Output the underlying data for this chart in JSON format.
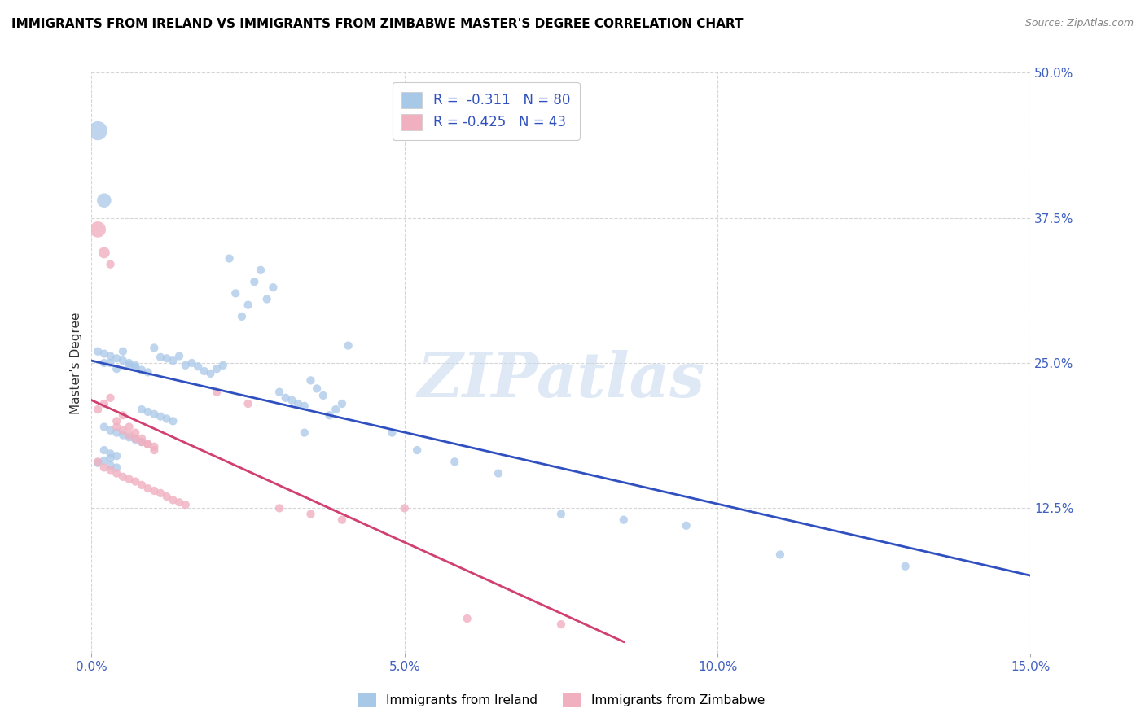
{
  "title": "IMMIGRANTS FROM IRELAND VS IMMIGRANTS FROM ZIMBABWE MASTER'S DEGREE CORRELATION CHART",
  "source": "Source: ZipAtlas.com",
  "ylabel": "Master's Degree",
  "xlim": [
    0.0,
    0.15
  ],
  "ylim": [
    0.0,
    0.5
  ],
  "xticks": [
    0.0,
    0.05,
    0.1,
    0.15
  ],
  "yticks": [
    0.125,
    0.25,
    0.375,
    0.5
  ],
  "ytick_labels": [
    "12.5%",
    "25.0%",
    "37.5%",
    "50.0%"
  ],
  "xtick_labels": [
    "0.0%",
    "5.0%",
    "10.0%",
    "15.0%"
  ],
  "ireland_color": "#a8c8e8",
  "zimbabwe_color": "#f0b0c0",
  "ireland_line_color": "#3050c0",
  "zimbabwe_line_color": "#d04070",
  "ireland_R": -0.311,
  "ireland_N": 80,
  "zimbabwe_R": -0.425,
  "zimbabwe_N": 43,
  "ireland_line_x": [
    0.0,
    0.15
  ],
  "ireland_line_y": [
    0.252,
    0.067
  ],
  "zimbabwe_line_x": [
    0.0,
    0.085
  ],
  "zimbabwe_line_y": [
    0.218,
    0.01
  ],
  "watermark": "ZIPatlas",
  "background_color": "#ffffff",
  "grid_color": "#cccccc",
  "ireland_scatter_x": [
    0.002,
    0.003,
    0.004,
    0.005,
    0.006,
    0.007,
    0.008,
    0.009,
    0.01,
    0.011,
    0.012,
    0.013,
    0.014,
    0.015,
    0.016,
    0.017,
    0.018,
    0.019,
    0.02,
    0.021,
    0.022,
    0.023,
    0.024,
    0.025,
    0.026,
    0.027,
    0.028,
    0.029,
    0.03,
    0.031,
    0.032,
    0.033,
    0.034,
    0.035,
    0.036,
    0.037,
    0.038,
    0.039,
    0.04,
    0.041,
    0.001,
    0.002,
    0.003,
    0.004,
    0.005,
    0.006,
    0.007,
    0.008,
    0.009,
    0.01,
    0.011,
    0.012,
    0.013,
    0.002,
    0.003,
    0.004,
    0.005,
    0.006,
    0.007,
    0.008,
    0.002,
    0.003,
    0.004,
    0.003,
    0.002,
    0.001,
    0.003,
    0.004,
    0.034,
    0.048,
    0.052,
    0.058,
    0.065,
    0.075,
    0.085,
    0.095,
    0.11,
    0.13,
    0.001,
    0.002
  ],
  "ireland_scatter_y": [
    0.25,
    0.25,
    0.245,
    0.26,
    0.248,
    0.246,
    0.244,
    0.242,
    0.263,
    0.255,
    0.254,
    0.252,
    0.256,
    0.248,
    0.25,
    0.247,
    0.243,
    0.241,
    0.245,
    0.248,
    0.34,
    0.31,
    0.29,
    0.3,
    0.32,
    0.33,
    0.305,
    0.315,
    0.225,
    0.22,
    0.218,
    0.215,
    0.213,
    0.235,
    0.228,
    0.222,
    0.205,
    0.21,
    0.215,
    0.265,
    0.26,
    0.258,
    0.256,
    0.254,
    0.252,
    0.25,
    0.248,
    0.21,
    0.208,
    0.206,
    0.204,
    0.202,
    0.2,
    0.195,
    0.192,
    0.19,
    0.188,
    0.186,
    0.184,
    0.182,
    0.175,
    0.172,
    0.17,
    0.168,
    0.166,
    0.164,
    0.162,
    0.16,
    0.19,
    0.19,
    0.175,
    0.165,
    0.155,
    0.12,
    0.115,
    0.11,
    0.085,
    0.075,
    0.45,
    0.39
  ],
  "zimbabwe_scatter_x": [
    0.001,
    0.002,
    0.003,
    0.004,
    0.005,
    0.006,
    0.007,
    0.008,
    0.009,
    0.01,
    0.001,
    0.002,
    0.003,
    0.004,
    0.005,
    0.006,
    0.007,
    0.008,
    0.009,
    0.01,
    0.001,
    0.002,
    0.003,
    0.004,
    0.005,
    0.006,
    0.007,
    0.008,
    0.009,
    0.01,
    0.011,
    0.012,
    0.013,
    0.014,
    0.015,
    0.02,
    0.025,
    0.03,
    0.035,
    0.04,
    0.06,
    0.075,
    0.05
  ],
  "zimbabwe_scatter_y": [
    0.365,
    0.345,
    0.335,
    0.2,
    0.205,
    0.195,
    0.19,
    0.185,
    0.18,
    0.175,
    0.21,
    0.215,
    0.22,
    0.195,
    0.192,
    0.188,
    0.185,
    0.182,
    0.18,
    0.178,
    0.165,
    0.16,
    0.158,
    0.155,
    0.152,
    0.15,
    0.148,
    0.145,
    0.142,
    0.14,
    0.138,
    0.135,
    0.132,
    0.13,
    0.128,
    0.225,
    0.215,
    0.125,
    0.12,
    0.115,
    0.03,
    0.025,
    0.125
  ]
}
